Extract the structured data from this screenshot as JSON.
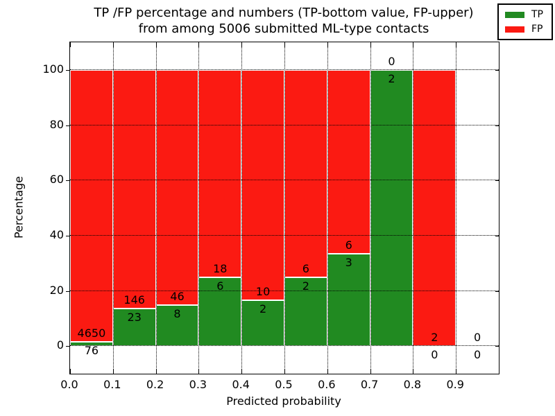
{
  "title_lines": [
    "TP /FP percentage and numbers (TP-bottom value, FP-upper)",
    "from among 5006 submitted ML-type contacts"
  ],
  "chart_data": {
    "type": "bar",
    "stacked": true,
    "title": "TP /FP percentage and numbers (TP-bottom value, FP-upper) from among 5006 submitted ML-type contacts",
    "xlabel": "Predicted probability",
    "ylabel": "Percentage",
    "xlim": [
      0.0,
      1.0
    ],
    "ylim": [
      -10,
      110
    ],
    "grid": true,
    "legend_position": "upper right",
    "x_tick_labels": [
      "0.0",
      "0.1",
      "0.2",
      "0.3",
      "0.4",
      "0.5",
      "0.6",
      "0.7",
      "0.8",
      "0.9"
    ],
    "y_tick_labels": [
      "0",
      "20",
      "40",
      "60",
      "80",
      "100"
    ],
    "y_tick_values": [
      0,
      20,
      40,
      60,
      80,
      100
    ],
    "series": [
      {
        "name": "TP",
        "color": "#218a21"
      },
      {
        "name": "FP",
        "color": "#fb1a12"
      }
    ],
    "total_contacts": 5006,
    "bins": [
      {
        "range": [
          0.0,
          0.1
        ],
        "tp": 76,
        "fp": 4650
      },
      {
        "range": [
          0.1,
          0.2
        ],
        "tp": 23,
        "fp": 146
      },
      {
        "range": [
          0.2,
          0.3
        ],
        "tp": 8,
        "fp": 46
      },
      {
        "range": [
          0.3,
          0.4
        ],
        "tp": 6,
        "fp": 18
      },
      {
        "range": [
          0.4,
          0.5
        ],
        "tp": 2,
        "fp": 10
      },
      {
        "range": [
          0.5,
          0.6
        ],
        "tp": 2,
        "fp": 6
      },
      {
        "range": [
          0.6,
          0.7
        ],
        "tp": 3,
        "fp": 6
      },
      {
        "range": [
          0.7,
          0.8
        ],
        "tp": 2,
        "fp": 0
      },
      {
        "range": [
          0.8,
          0.9
        ],
        "tp": 0,
        "fp": 2
      },
      {
        "range": [
          0.9,
          1.0
        ],
        "tp": 0,
        "fp": 0
      }
    ]
  }
}
